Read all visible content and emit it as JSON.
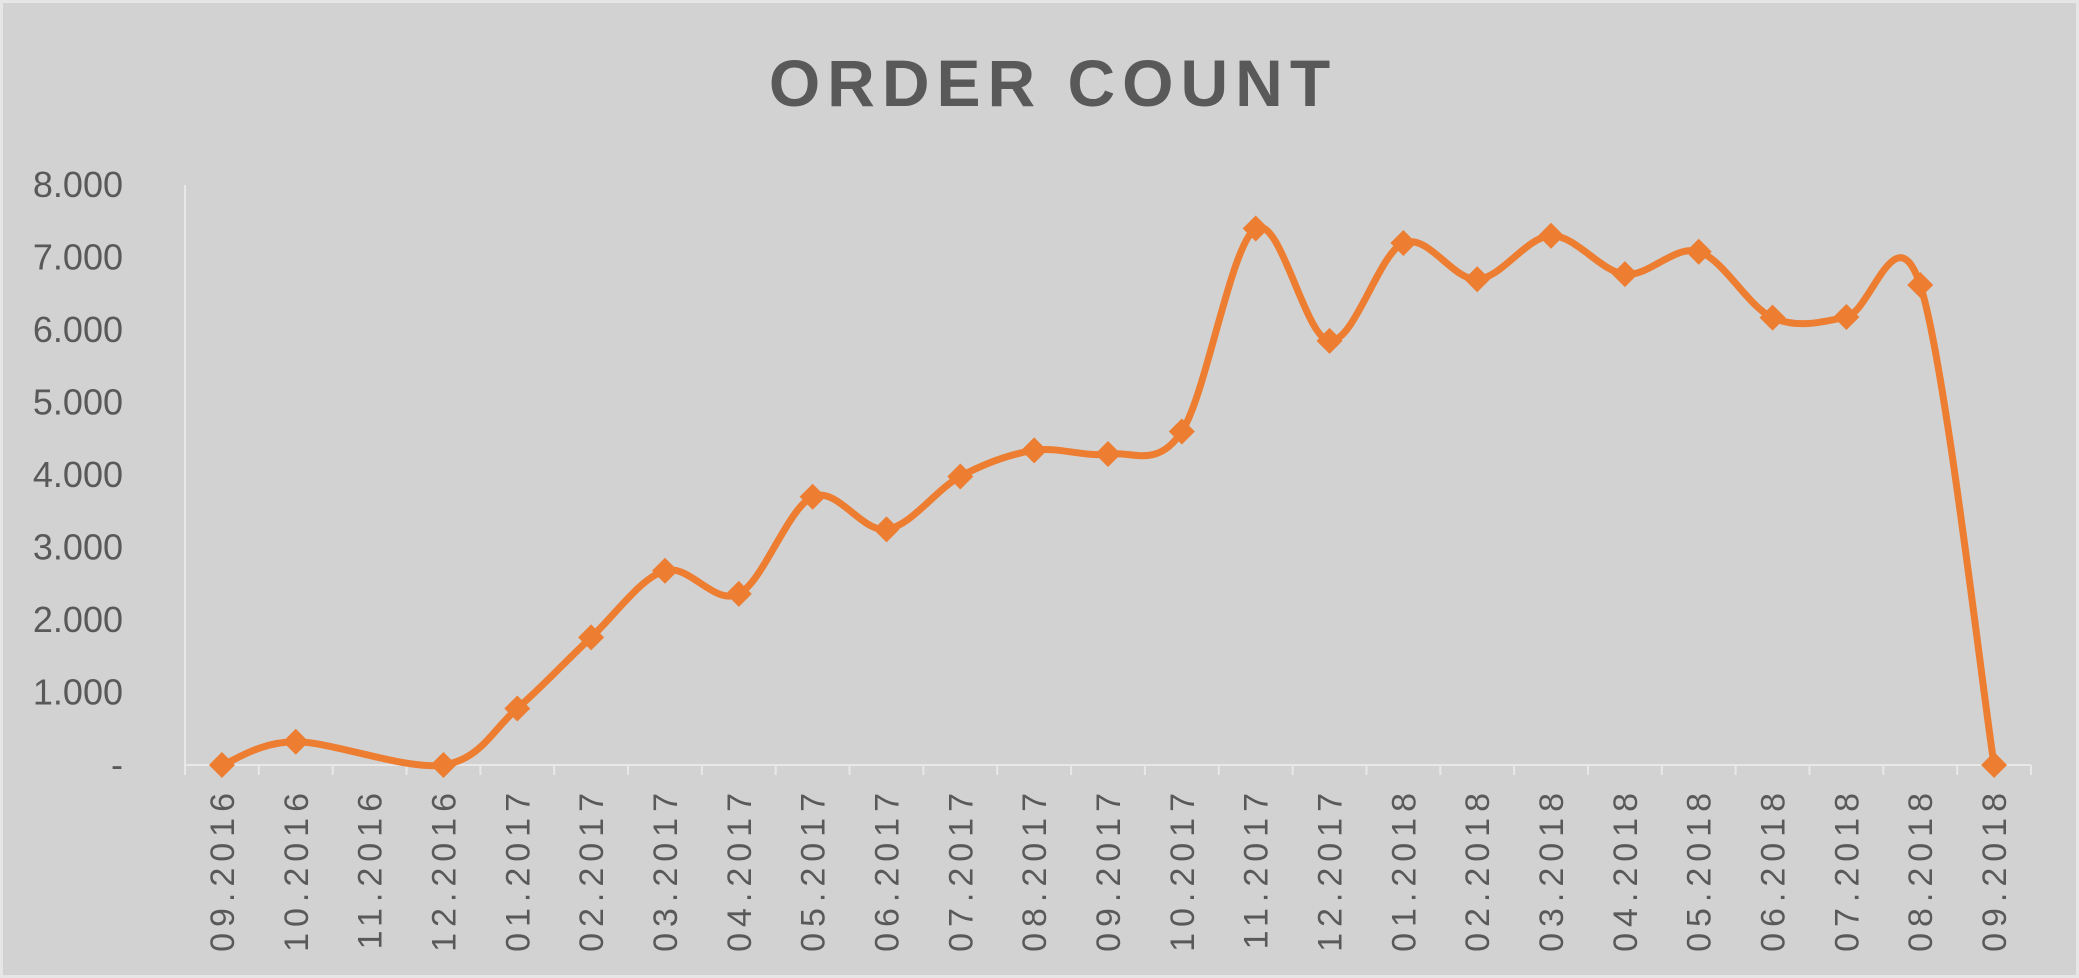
{
  "chart_data": {
    "type": "line",
    "title": "ORDER COUNT",
    "xlabel": "",
    "ylabel": "",
    "categories": [
      "09.2016",
      "10.2016",
      "11.2016",
      "12.2016",
      "01.2017",
      "02.2017",
      "03.2017",
      "04.2017",
      "05.2017",
      "06.2017",
      "07.2017",
      "08.2017",
      "09.2017",
      "10.2017",
      "11.2017",
      "12.2017",
      "01.2018",
      "02.2018",
      "03.2018",
      "04.2018",
      "05.2018",
      "06.2018",
      "07.2018",
      "08.2018",
      "09.2018"
    ],
    "series": [
      {
        "values": [
          0,
          320,
          null,
          0,
          780,
          1760,
          2680,
          2360,
          3700,
          3250,
          3980,
          4340,
          4290,
          4600,
          7400,
          5850,
          7200,
          6700,
          7300,
          6770,
          7080,
          6170,
          6180,
          6620,
          0
        ],
        "color": "#ed7d31",
        "marker": "diamond",
        "smooth": true
      }
    ],
    "ylim": [
      0,
      8000
    ],
    "y_ticks": [
      {
        "value": 0,
        "label": "-"
      },
      {
        "value": 1000,
        "label": "1.000"
      },
      {
        "value": 2000,
        "label": "2.000"
      },
      {
        "value": 3000,
        "label": "3.000"
      },
      {
        "value": 4000,
        "label": "4.000"
      },
      {
        "value": 5000,
        "label": "5.000"
      },
      {
        "value": 6000,
        "label": "6.000"
      },
      {
        "value": 7000,
        "label": "7.000"
      },
      {
        "value": 8000,
        "label": "8.000"
      }
    ],
    "grid": false,
    "legend": "none",
    "background_color": "#d2d2d2",
    "text_color": "#595959"
  }
}
